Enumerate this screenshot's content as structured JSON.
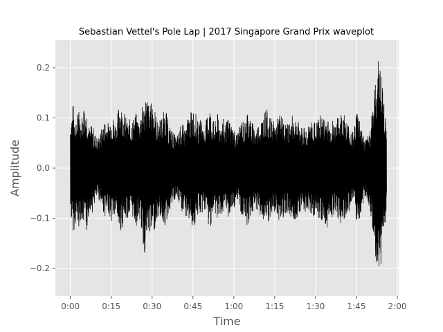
{
  "chart_data": {
    "type": "line",
    "title": "Sebastian Vettel's Pole Lap | 2017 Singapore Grand Prix waveplot",
    "xlabel": "Time",
    "ylabel": "Amplitude",
    "x_tick_labels": [
      "0:00",
      "0:15",
      "0:30",
      "0:45",
      "1:00",
      "1:15",
      "1:30",
      "1:45",
      "2:00"
    ],
    "x_tick_values": [
      0,
      15,
      30,
      45,
      60,
      75,
      90,
      105,
      120
    ],
    "y_tick_labels": [
      "−0.2",
      "−0.1",
      "0.0",
      "0.1",
      "0.2"
    ],
    "y_tick_values": [
      -0.2,
      -0.1,
      0.0,
      0.1,
      0.2
    ],
    "xlim": [
      -5.5,
      120.5
    ],
    "ylim": [
      -0.255,
      0.255
    ],
    "grid": true,
    "colors": {
      "background": "#e5e5e5",
      "grid": "#ffffff",
      "waveform": "#000000",
      "tick_text": "#555555"
    },
    "series": [
      {
        "x": [
          0,
          1,
          2,
          3,
          4,
          5,
          6,
          7,
          8,
          9,
          10,
          11,
          12,
          13,
          14,
          15,
          16,
          17,
          18,
          19,
          20,
          21,
          22,
          23,
          24,
          25,
          26,
          27,
          28,
          29,
          30,
          31,
          32,
          33,
          34,
          35,
          36,
          37,
          38,
          39,
          40,
          41,
          42,
          43,
          44,
          45,
          46,
          47,
          48,
          49,
          50,
          51,
          52,
          53,
          54,
          55,
          56,
          57,
          58,
          59,
          60,
          61,
          62,
          63,
          64,
          65,
          66,
          67,
          68,
          69,
          70,
          71,
          72,
          73,
          74,
          75,
          76,
          77,
          78,
          79,
          80,
          81,
          82,
          83,
          84,
          85,
          86,
          87,
          88,
          89,
          90,
          91,
          92,
          93,
          94,
          95,
          96,
          97,
          98,
          99,
          100,
          101,
          102,
          103,
          104,
          105,
          106,
          107,
          108,
          109,
          110,
          111,
          112,
          113,
          114,
          115,
          116
        ],
        "max": [
          0.1,
          0.13,
          0.1,
          0.12,
          0.1,
          0.13,
          0.12,
          0.08,
          0.09,
          0.07,
          0.06,
          0.07,
          0.09,
          0.1,
          0.09,
          0.11,
          0.1,
          0.09,
          0.14,
          0.12,
          0.11,
          0.09,
          0.1,
          0.1,
          0.11,
          0.1,
          0.12,
          0.13,
          0.15,
          0.12,
          0.14,
          0.12,
          0.09,
          0.1,
          0.11,
          0.12,
          0.09,
          0.08,
          0.07,
          0.06,
          0.08,
          0.09,
          0.08,
          0.1,
          0.11,
          0.12,
          0.11,
          0.09,
          0.1,
          0.08,
          0.1,
          0.13,
          0.1,
          0.09,
          0.11,
          0.09,
          0.1,
          0.09,
          0.1,
          0.09,
          0.08,
          0.07,
          0.08,
          0.1,
          0.09,
          0.12,
          0.1,
          0.09,
          0.08,
          0.09,
          0.1,
          0.11,
          0.12,
          0.1,
          0.1,
          0.09,
          0.1,
          0.11,
          0.1,
          0.09,
          0.09,
          0.1,
          0.11,
          0.1,
          0.09,
          0.08,
          0.09,
          0.08,
          0.09,
          0.1,
          0.09,
          0.1,
          0.11,
          0.1,
          0.11,
          0.09,
          0.1,
          0.09,
          0.1,
          0.11,
          0.12,
          0.1,
          0.09,
          0.08,
          0.07,
          0.12,
          0.11,
          0.08,
          0.06,
          0.06,
          0.08,
          0.14,
          0.17,
          0.23,
          0.19,
          0.15,
          0.08
        ],
        "min": [
          -0.1,
          -0.13,
          -0.11,
          -0.12,
          -0.1,
          -0.12,
          -0.13,
          -0.08,
          -0.09,
          -0.07,
          -0.06,
          -0.07,
          -0.09,
          -0.1,
          -0.09,
          -0.11,
          -0.1,
          -0.1,
          -0.13,
          -0.12,
          -0.11,
          -0.1,
          -0.1,
          -0.1,
          -0.12,
          -0.1,
          -0.12,
          -0.18,
          -0.15,
          -0.13,
          -0.14,
          -0.12,
          -0.1,
          -0.1,
          -0.11,
          -0.12,
          -0.09,
          -0.08,
          -0.07,
          -0.06,
          -0.08,
          -0.09,
          -0.1,
          -0.1,
          -0.11,
          -0.12,
          -0.12,
          -0.09,
          -0.1,
          -0.08,
          -0.1,
          -0.13,
          -0.1,
          -0.09,
          -0.11,
          -0.09,
          -0.1,
          -0.09,
          -0.1,
          -0.09,
          -0.08,
          -0.07,
          -0.08,
          -0.1,
          -0.09,
          -0.12,
          -0.1,
          -0.09,
          -0.08,
          -0.09,
          -0.1,
          -0.11,
          -0.12,
          -0.11,
          -0.1,
          -0.09,
          -0.1,
          -0.11,
          -0.1,
          -0.09,
          -0.09,
          -0.1,
          -0.11,
          -0.1,
          -0.09,
          -0.08,
          -0.09,
          -0.08,
          -0.09,
          -0.1,
          -0.09,
          -0.1,
          -0.11,
          -0.1,
          -0.14,
          -0.09,
          -0.1,
          -0.09,
          -0.1,
          -0.11,
          -0.12,
          -0.1,
          -0.09,
          -0.08,
          -0.07,
          -0.12,
          -0.11,
          -0.08,
          -0.06,
          -0.06,
          -0.09,
          -0.14,
          -0.19,
          -0.23,
          -0.19,
          -0.15,
          -0.08
        ]
      }
    ]
  }
}
